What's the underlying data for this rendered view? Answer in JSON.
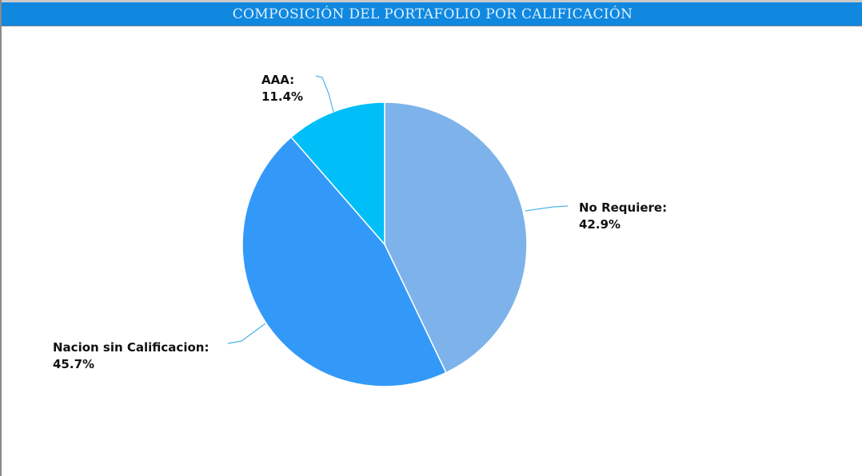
{
  "header": {
    "title": "COMPOSICIÓN DEL PORTAFOLIO POR CALIFICACIÓN"
  },
  "chart_data": {
    "type": "pie",
    "title": "COMPOSICIÓN DEL PORTAFOLIO POR CALIFICACIÓN",
    "start_angle_deg": 0,
    "direction": "clockwise",
    "slices": [
      {
        "label": "No Requiere",
        "value": 42.9,
        "display": "42.9%",
        "color": "#7db3ea"
      },
      {
        "label": "Nacion sin Calificacion",
        "value": 45.7,
        "display": "45.7%",
        "color": "#3399f8"
      },
      {
        "label": "AAA",
        "value": 11.4,
        "display": "11.4%",
        "color": "#00bff8"
      }
    ],
    "label_suffix": ":",
    "leader_color": "#4db4e6",
    "slice_border_color": "#ffffff"
  }
}
